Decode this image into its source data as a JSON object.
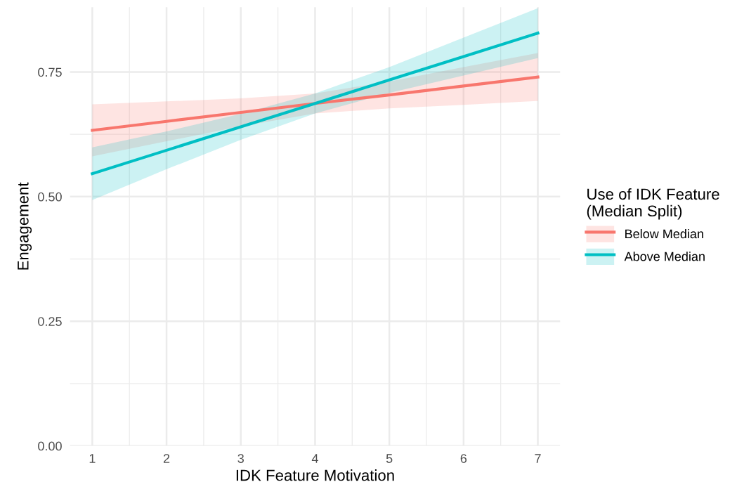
{
  "chart_data": {
    "type": "line",
    "xlabel": "IDK Feature Motivation",
    "ylabel": "Engagement",
    "legend_title": "Use of IDK Feature\n(Median Split)",
    "x": [
      1,
      2,
      3,
      4,
      5,
      6,
      7
    ],
    "series": [
      {
        "name": "Below Median",
        "color": "#f8766d",
        "values": [
          0.633,
          0.651,
          0.669,
          0.687,
          0.704,
          0.722,
          0.74
        ],
        "lower": [
          0.581,
          0.611,
          0.641,
          0.667,
          0.677,
          0.684,
          0.692
        ],
        "upper": [
          0.685,
          0.691,
          0.697,
          0.707,
          0.731,
          0.76,
          0.788
        ]
      },
      {
        "name": "Above Median",
        "color": "#00bfc4",
        "values": [
          0.546,
          0.593,
          0.64,
          0.687,
          0.734,
          0.781,
          0.828
        ],
        "lower": [
          0.493,
          0.555,
          0.614,
          0.667,
          0.708,
          0.743,
          0.778
        ],
        "upper": [
          0.599,
          0.631,
          0.666,
          0.707,
          0.76,
          0.819,
          0.878
        ]
      }
    ],
    "xlim": [
      0.7,
      7.3
    ],
    "ylim": [
      0,
      0.88
    ],
    "xticks": [
      1,
      {
        "value": 1.5,
        "label": null
      },
      2,
      {
        "value": 2.5,
        "label": null
      },
      3,
      {
        "value": 3.5,
        "label": null
      },
      4,
      {
        "value": 4.5,
        "label": null
      },
      5,
      {
        "value": 5.5,
        "label": null
      },
      6,
      {
        "value": 6.5,
        "label": null
      },
      7
    ],
    "yticks": [
      {
        "value": 0,
        "label": "0.00"
      },
      {
        "value": 0.125,
        "label": null
      },
      0.25,
      {
        "value": 0.375,
        "label": null
      },
      {
        "value": 0.5,
        "label": "0.50"
      },
      {
        "value": 0.625,
        "label": null
      },
      0.75
    ],
    "grid": true,
    "legend": "right",
    "line_style": "solid",
    "marker": "none"
  }
}
